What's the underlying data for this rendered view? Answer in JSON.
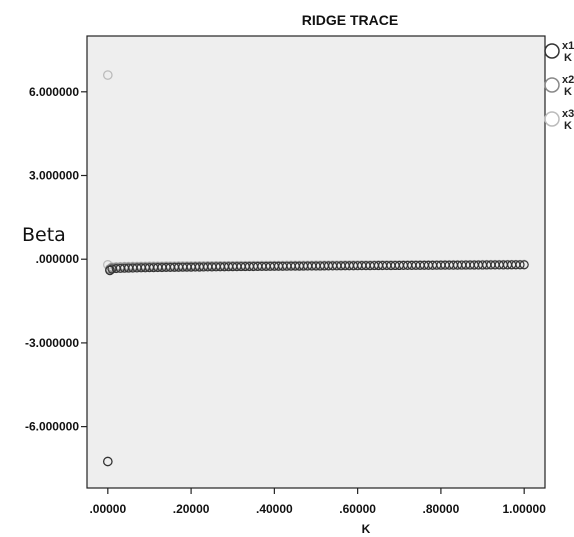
{
  "chart_data": {
    "type": "scatter",
    "title": "RIDGE TRACE",
    "xlabel": "K",
    "ylabel": "Beta",
    "xlim": [
      -0.05,
      1.05
    ],
    "ylim": [
      -8.2,
      8.0
    ],
    "x_ticks": [
      {
        "value": 0.0,
        "label": ".00000"
      },
      {
        "value": 0.2,
        "label": ".20000"
      },
      {
        "value": 0.4,
        "label": ".40000"
      },
      {
        "value": 0.6,
        "label": ".60000"
      },
      {
        "value": 0.8,
        "label": ".80000"
      },
      {
        "value": 1.0,
        "label": "1.00000"
      }
    ],
    "y_ticks": [
      {
        "value": 6.0,
        "label": "6.000000"
      },
      {
        "value": 3.0,
        "label": "3.000000"
      },
      {
        "value": 0.0,
        "label": ".000000"
      },
      {
        "value": -3.0,
        "label": "-3.000000"
      },
      {
        "value": -6.0,
        "label": "-6.000000"
      }
    ],
    "grid": false,
    "legend_position": "right",
    "series": [
      {
        "label_line1": "x1",
        "label_line2": "K",
        "color": "#333333",
        "outliers": [
          {
            "x": 0.0,
            "y": -7.25
          },
          {
            "x": 0.005,
            "y": -0.4
          }
        ],
        "trace": {
          "x_start": 0.01,
          "x_end": 1.0,
          "step": 0.01,
          "y_start": -0.35,
          "y_end": -0.2
        }
      },
      {
        "label_line1": "x2",
        "label_line2": "K",
        "color": "#888888",
        "outliers": [
          {
            "x": 0.005,
            "y": -0.35
          }
        ],
        "trace": {
          "x_start": 0.01,
          "x_end": 1.0,
          "step": 0.01,
          "y_start": -0.3,
          "y_end": -0.2
        }
      },
      {
        "label_line1": "x3",
        "label_line2": "K",
        "color": "#bbbbbb",
        "outliers": [
          {
            "x": 0.0,
            "y": 6.6
          },
          {
            "x": 0.0,
            "y": -0.2
          }
        ],
        "trace": {
          "x_start": 0.01,
          "x_end": 1.0,
          "step": 0.01,
          "y_start": -0.27,
          "y_end": -0.18
        }
      }
    ]
  }
}
